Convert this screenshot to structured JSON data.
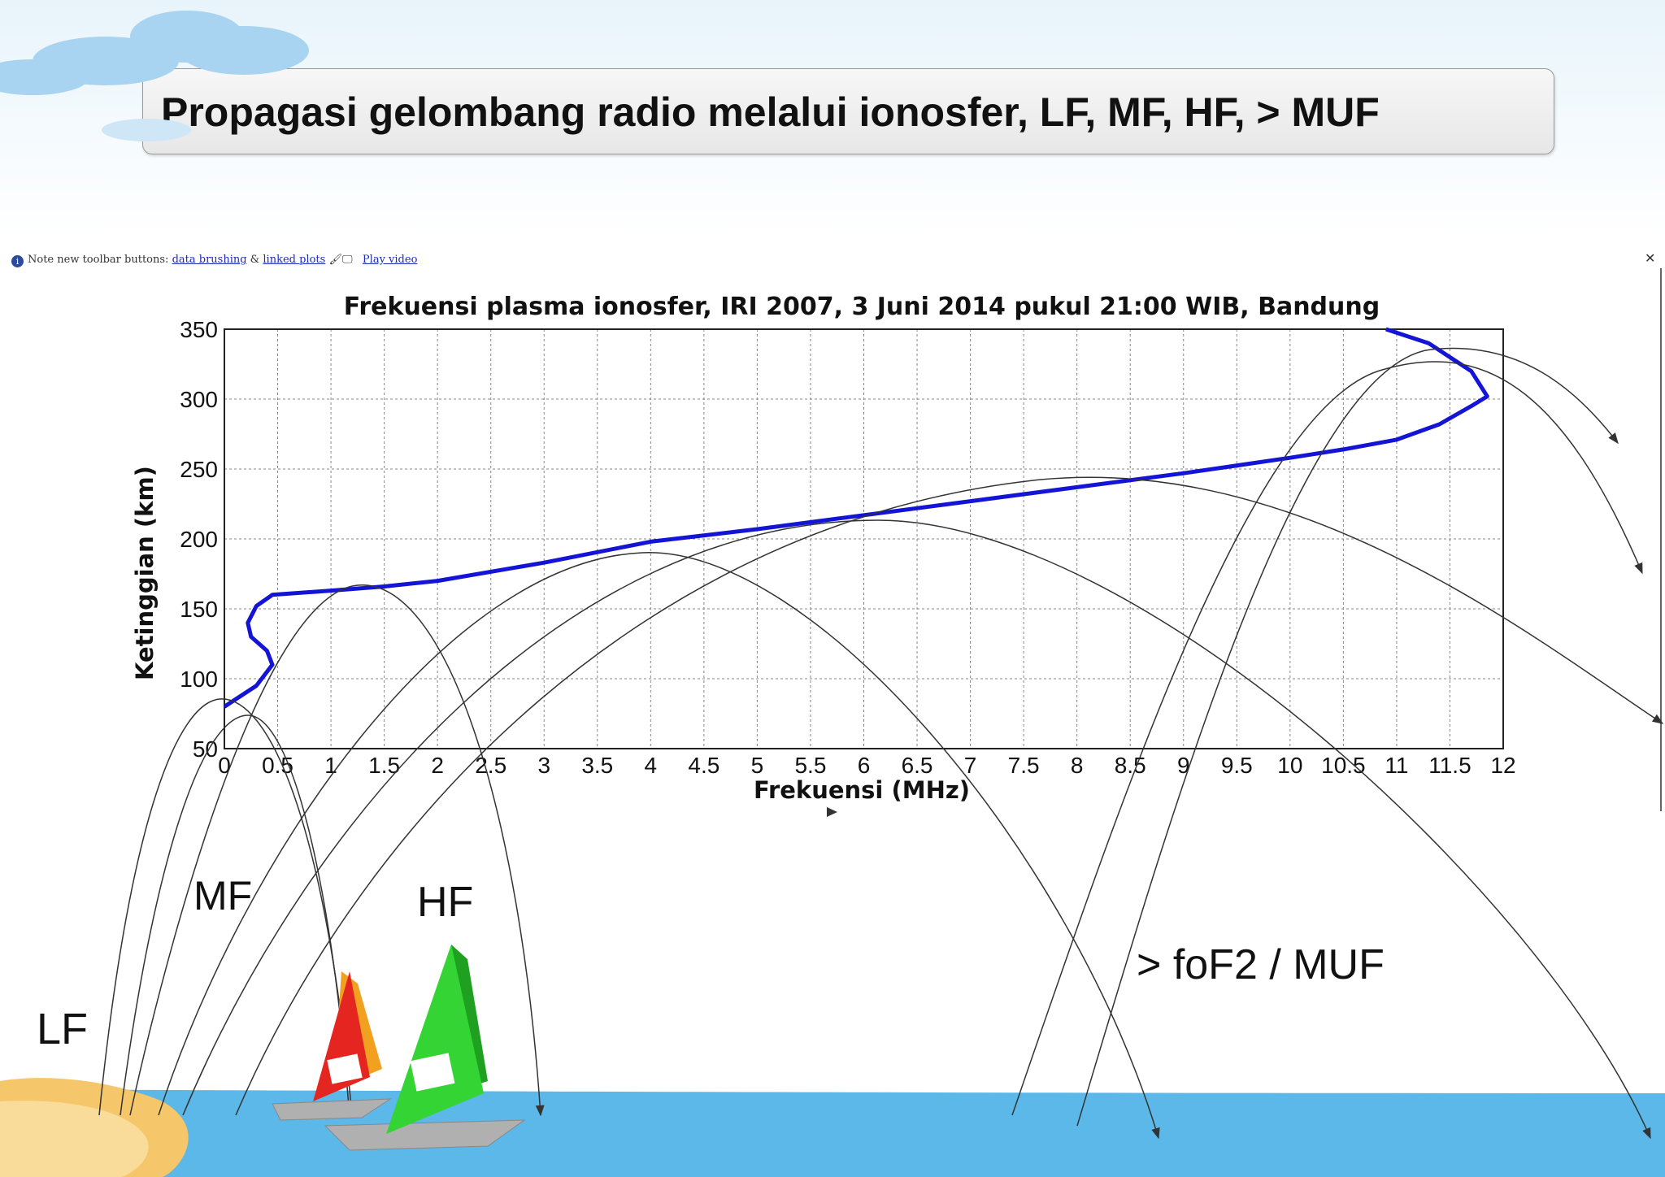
{
  "slide_title": "Propagasi gelombang radio melalui ionosfer, LF, MF, HF, > MUF",
  "toolbar": {
    "prefix": "Note new toolbar buttons: ",
    "link1": "data brushing",
    "amp": " & ",
    "link2": "linked plots",
    "link3": "Play video"
  },
  "signal_labels": {
    "lf": "LF",
    "mf": "MF",
    "hf": "HF",
    "muf": "> foF2 / MUF"
  },
  "colors": {
    "profile": "#1414d6",
    "ray": "#333333",
    "sea": "#5bb8e8",
    "sand": "#f5c66a",
    "grid": "#888888"
  },
  "chart_data": {
    "type": "line",
    "title": "Frekuensi plasma ionosfer, IRI 2007, 3 Juni 2014 pukul 21:00 WIB, Bandung",
    "xlabel": "Frekuensi (MHz)",
    "ylabel": "Ketinggian (km)",
    "xlim": [
      0,
      12
    ],
    "ylim": [
      50,
      350
    ],
    "xticks": [
      "0",
      "0.5",
      "1",
      "1.5",
      "2",
      "2.5",
      "3",
      "3.5",
      "4",
      "4.5",
      "5",
      "5.5",
      "6",
      "6.5",
      "7",
      "7.5",
      "8",
      "8.5",
      "9",
      "9.5",
      "10",
      "10.5",
      "11",
      "11.5",
      "12"
    ],
    "yticks": [
      "50",
      "100",
      "150",
      "200",
      "250",
      "300",
      "350"
    ],
    "grid": true,
    "series": [
      {
        "x": [
          0.0,
          0.3,
          0.45,
          0.4,
          0.25,
          0.22,
          0.3,
          0.45,
          1.0,
          1.5,
          2.0,
          3.0,
          4.0,
          5.0,
          6.0,
          7.0,
          8.0,
          9.0,
          10.0,
          10.5,
          11.0,
          11.4,
          11.7,
          11.85,
          11.7,
          11.3,
          10.9
        ],
        "y": [
          80,
          95,
          110,
          120,
          130,
          140,
          152,
          160,
          163,
          166,
          170,
          183,
          198,
          207,
          217,
          227,
          237,
          247,
          258,
          264,
          271,
          282,
          295,
          302,
          320,
          340,
          350
        ]
      }
    ]
  }
}
